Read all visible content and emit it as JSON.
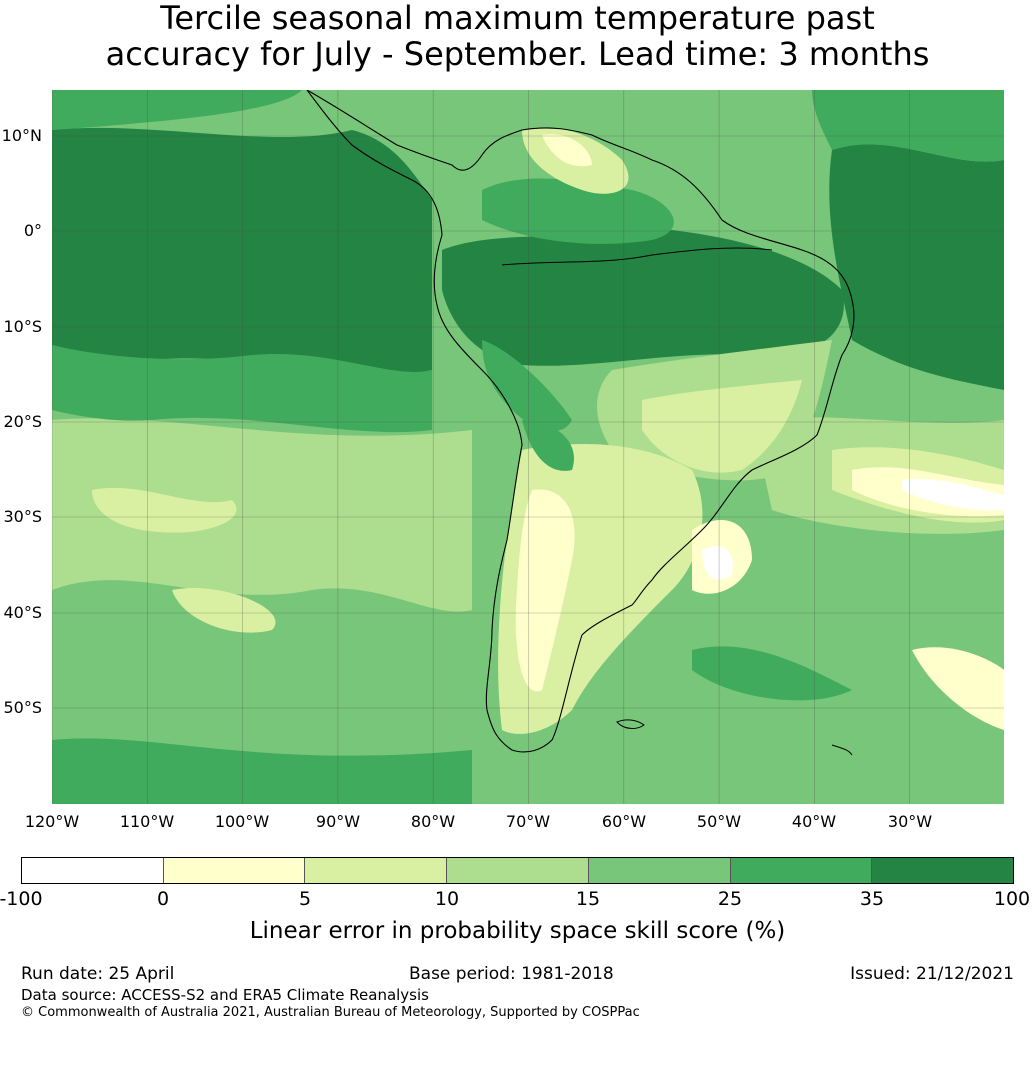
{
  "title_line1": "Tercile seasonal maximum temperature past",
  "title_line2": "accuracy for July - September. Lead time: 3 months",
  "lat_labels": [
    "10°N",
    "0°",
    "10°S",
    "20°S",
    "30°S",
    "40°S",
    "50°S"
  ],
  "lon_labels": [
    "120°W",
    "110°W",
    "100°W",
    "90°W",
    "80°W",
    "70°W",
    "60°W",
    "50°W",
    "40°W",
    "30°W"
  ],
  "colorbar": {
    "ticks": [
      "-100",
      "0",
      "5",
      "10",
      "15",
      "25",
      "35",
      "100"
    ],
    "colors": [
      "#ffffff",
      "#ffffcc",
      "#d9f0a3",
      "#addd8e",
      "#78c679",
      "#41ab5d",
      "#238443"
    ],
    "label": "Linear error in probability space skill score (%)"
  },
  "footer": {
    "run_date": "Run date: 25 April",
    "base_period": "Base period: 1981-2018",
    "issued": "Issued: 21/12/2021",
    "data_source": "Data source: ACCESS-S2 and ERA5 Climate Reanalysis",
    "copyright": "© Commonwealth of Australia 2021, Australian Bureau of Meteorology, Supported by COSPPac"
  }
}
